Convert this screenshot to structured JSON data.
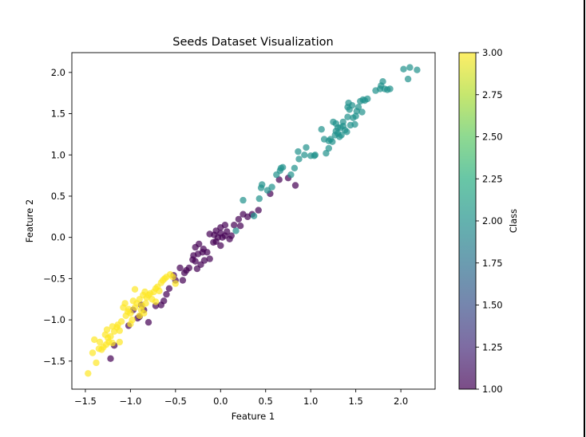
{
  "chart_data": {
    "type": "scatter",
    "title": "Seeds Dataset Visualization",
    "xlabel": "Feature 1",
    "ylabel": "Feature 2",
    "xlim": [
      -1.65,
      2.38
    ],
    "ylim": [
      -1.84,
      2.24
    ],
    "xticks": [
      "−1.5",
      "−1.0",
      "−0.5",
      "0.0",
      "0.5",
      "1.0",
      "1.5",
      "2.0"
    ],
    "yticks": [
      "−1.5",
      "−1.0",
      "−0.5",
      "0.0",
      "0.5",
      "1.0",
      "1.5",
      "2.0"
    ],
    "grid": false,
    "colorbar": {
      "label": "Class",
      "range": [
        1.0,
        3.0
      ],
      "ticks": [
        "1.00",
        "1.25",
        "1.50",
        "1.75",
        "2.00",
        "2.25",
        "2.50",
        "2.75",
        "3.00"
      ],
      "colormap": "viridis",
      "alpha": 0.7
    },
    "series": [
      {
        "class": 1,
        "color": "#440154",
        "points": [
          [
            -1.22,
            -1.47
          ],
          [
            -1.18,
            -1.31
          ],
          [
            -1.02,
            -1.07
          ],
          [
            -0.9,
            -0.96
          ],
          [
            -0.85,
            -0.88
          ],
          [
            -0.88,
            -0.82
          ],
          [
            -0.8,
            -1.03
          ],
          [
            -0.72,
            -0.83
          ],
          [
            -0.63,
            -0.77
          ],
          [
            -0.57,
            -0.62
          ],
          [
            -0.5,
            -0.52
          ],
          [
            -0.42,
            -0.52
          ],
          [
            -0.38,
            -0.4
          ],
          [
            -0.35,
            -0.37
          ],
          [
            -0.45,
            -0.37
          ],
          [
            -0.31,
            -0.27
          ],
          [
            -0.3,
            -0.22
          ],
          [
            -0.26,
            -0.38
          ],
          [
            -0.28,
            -0.29
          ],
          [
            -0.22,
            -0.33
          ],
          [
            -0.2,
            -0.18
          ],
          [
            -0.19,
            -0.14
          ],
          [
            -0.24,
            -0.08
          ],
          [
            -0.28,
            -0.12
          ],
          [
            -0.18,
            -0.28
          ],
          [
            -0.15,
            -0.18
          ],
          [
            -0.12,
            -0.26
          ],
          [
            -0.08,
            -0.06
          ],
          [
            -0.05,
            -0.05
          ],
          [
            -0.03,
            0.0
          ],
          [
            0.0,
            0.05
          ],
          [
            0.02,
            0.0
          ],
          [
            0.05,
            0.02
          ],
          [
            0.07,
            0.07
          ],
          [
            0.1,
            -0.02
          ],
          [
            0.12,
            0.02
          ],
          [
            -0.05,
            0.08
          ],
          [
            0.0,
            0.12
          ],
          [
            0.05,
            0.15
          ],
          [
            0.15,
            0.15
          ],
          [
            0.2,
            0.22
          ],
          [
            0.25,
            0.28
          ],
          [
            0.3,
            0.25
          ],
          [
            0.35,
            0.28
          ],
          [
            0.42,
            0.33
          ],
          [
            0.55,
            0.53
          ],
          [
            0.65,
            0.7
          ],
          [
            0.75,
            0.72
          ],
          [
            0.83,
            0.63
          ],
          [
            -0.12,
            0.04
          ],
          [
            0.0,
            -0.1
          ],
          [
            -0.66,
            -0.82
          ],
          [
            -0.6,
            -0.69
          ],
          [
            -0.52,
            -0.46
          ],
          [
            -0.25,
            -0.2
          ],
          [
            -0.07,
            0.03
          ],
          [
            0.22,
            0.14
          ],
          [
            -0.92,
            -0.98
          ],
          [
            -0.97,
            -0.88
          ],
          [
            -0.4,
            -0.43
          ]
        ]
      },
      {
        "class": 2,
        "color": "#21918c",
        "points": [
          [
            0.17,
            0.08
          ],
          [
            0.25,
            0.45
          ],
          [
            0.37,
            0.26
          ],
          [
            0.43,
            0.47
          ],
          [
            0.45,
            0.6
          ],
          [
            0.46,
            0.64
          ],
          [
            0.52,
            0.57
          ],
          [
            0.57,
            0.61
          ],
          [
            0.62,
            0.76
          ],
          [
            0.66,
            0.81
          ],
          [
            0.69,
            0.85
          ],
          [
            0.67,
            0.84
          ],
          [
            0.78,
            0.76
          ],
          [
            0.82,
            0.84
          ],
          [
            0.87,
            0.95
          ],
          [
            0.86,
            1.04
          ],
          [
            0.93,
            1.0
          ],
          [
            0.95,
            1.09
          ],
          [
            1.04,
            0.99
          ],
          [
            1.05,
            1.0
          ],
          [
            1.12,
            1.31
          ],
          [
            1.15,
            1.19
          ],
          [
            1.17,
            1.02
          ],
          [
            1.2,
            1.08
          ],
          [
            1.22,
            1.19
          ],
          [
            1.24,
            1.16
          ],
          [
            1.3,
            1.33
          ],
          [
            1.25,
            1.4
          ],
          [
            1.27,
            1.24
          ],
          [
            1.28,
            1.38
          ],
          [
            1.3,
            1.26
          ],
          [
            1.32,
            1.22
          ],
          [
            1.34,
            1.24
          ],
          [
            1.36,
            1.4
          ],
          [
            1.38,
            1.3
          ],
          [
            1.4,
            1.28
          ],
          [
            1.41,
            1.46
          ],
          [
            1.43,
            1.55
          ],
          [
            1.42,
            1.63
          ],
          [
            1.44,
            1.36
          ],
          [
            1.46,
            1.6
          ],
          [
            1.47,
            1.45
          ],
          [
            1.49,
            1.37
          ],
          [
            1.5,
            1.47
          ],
          [
            1.53,
            1.58
          ],
          [
            1.55,
            1.65
          ],
          [
            1.57,
            1.52
          ],
          [
            1.58,
            1.67
          ],
          [
            1.6,
            1.66
          ],
          [
            1.63,
            1.68
          ],
          [
            1.72,
            1.78
          ],
          [
            1.78,
            1.84
          ],
          [
            1.8,
            1.89
          ],
          [
            1.82,
            1.8
          ],
          [
            1.85,
            1.79
          ],
          [
            1.88,
            1.8
          ],
          [
            1.77,
            1.8
          ],
          [
            2.03,
            2.04
          ],
          [
            2.08,
            1.92
          ],
          [
            2.1,
            2.06
          ],
          [
            2.18,
            2.03
          ],
          [
            1.2,
            1.17
          ],
          [
            1.33,
            1.33
          ],
          [
            1.0,
            0.99
          ],
          [
            1.36,
            1.35
          ],
          [
            1.28,
            1.29
          ],
          [
            1.41,
            1.58
          ],
          [
            1.51,
            1.53
          ]
        ]
      },
      {
        "class": 3,
        "color": "#fde725",
        "points": [
          [
            -1.47,
            -1.65
          ],
          [
            -1.42,
            -1.4
          ],
          [
            -1.38,
            -1.52
          ],
          [
            -1.4,
            -1.24
          ],
          [
            -1.35,
            -1.35
          ],
          [
            -1.3,
            -1.33
          ],
          [
            -1.34,
            -1.27
          ],
          [
            -1.28,
            -1.18
          ],
          [
            -1.25,
            -1.22
          ],
          [
            -1.22,
            -1.2
          ],
          [
            -1.26,
            -1.12
          ],
          [
            -1.2,
            -1.08
          ],
          [
            -1.18,
            -1.14
          ],
          [
            -1.15,
            -1.09
          ],
          [
            -1.12,
            -1.13
          ],
          [
            -1.14,
            -1.06
          ],
          [
            -1.1,
            -1.02
          ],
          [
            -1.05,
            -0.95
          ],
          [
            -1.0,
            -0.92
          ],
          [
            -1.02,
            -0.87
          ],
          [
            -1.06,
            -0.8
          ],
          [
            -0.98,
            -1.0
          ],
          [
            -0.95,
            -0.85
          ],
          [
            -0.93,
            -0.8
          ],
          [
            -0.9,
            -0.75
          ],
          [
            -0.87,
            -0.83
          ],
          [
            -0.85,
            -0.92
          ],
          [
            -0.83,
            -0.8
          ],
          [
            -0.82,
            -0.73
          ],
          [
            -0.8,
            -0.7
          ],
          [
            -0.78,
            -0.68
          ],
          [
            -0.76,
            -0.75
          ],
          [
            -0.74,
            -0.66
          ],
          [
            -0.72,
            -0.62
          ],
          [
            -0.7,
            -0.6
          ],
          [
            -0.68,
            -0.65
          ],
          [
            -0.66,
            -0.55
          ],
          [
            -0.64,
            -0.52
          ],
          [
            -0.62,
            -0.5
          ],
          [
            -0.6,
            -0.48
          ],
          [
            -0.56,
            -0.45
          ],
          [
            -0.53,
            -0.48
          ],
          [
            -0.5,
            -0.56
          ],
          [
            -0.95,
            -0.63
          ],
          [
            -0.9,
            -0.95
          ],
          [
            -0.88,
            -0.88
          ],
          [
            -1.12,
            -1.27
          ],
          [
            -1.2,
            -1.28
          ],
          [
            -1.32,
            -1.36
          ],
          [
            -0.86,
            -0.7
          ],
          [
            -1.0,
            -1.05
          ],
          [
            -1.08,
            -0.85
          ],
          [
            -0.72,
            -0.78
          ],
          [
            -0.84,
            -0.66
          ],
          [
            -1.24,
            -1.27
          ],
          [
            -1.27,
            -1.3
          ],
          [
            -0.97,
            -0.77
          ],
          [
            -1.03,
            -0.9
          ]
        ]
      }
    ]
  }
}
